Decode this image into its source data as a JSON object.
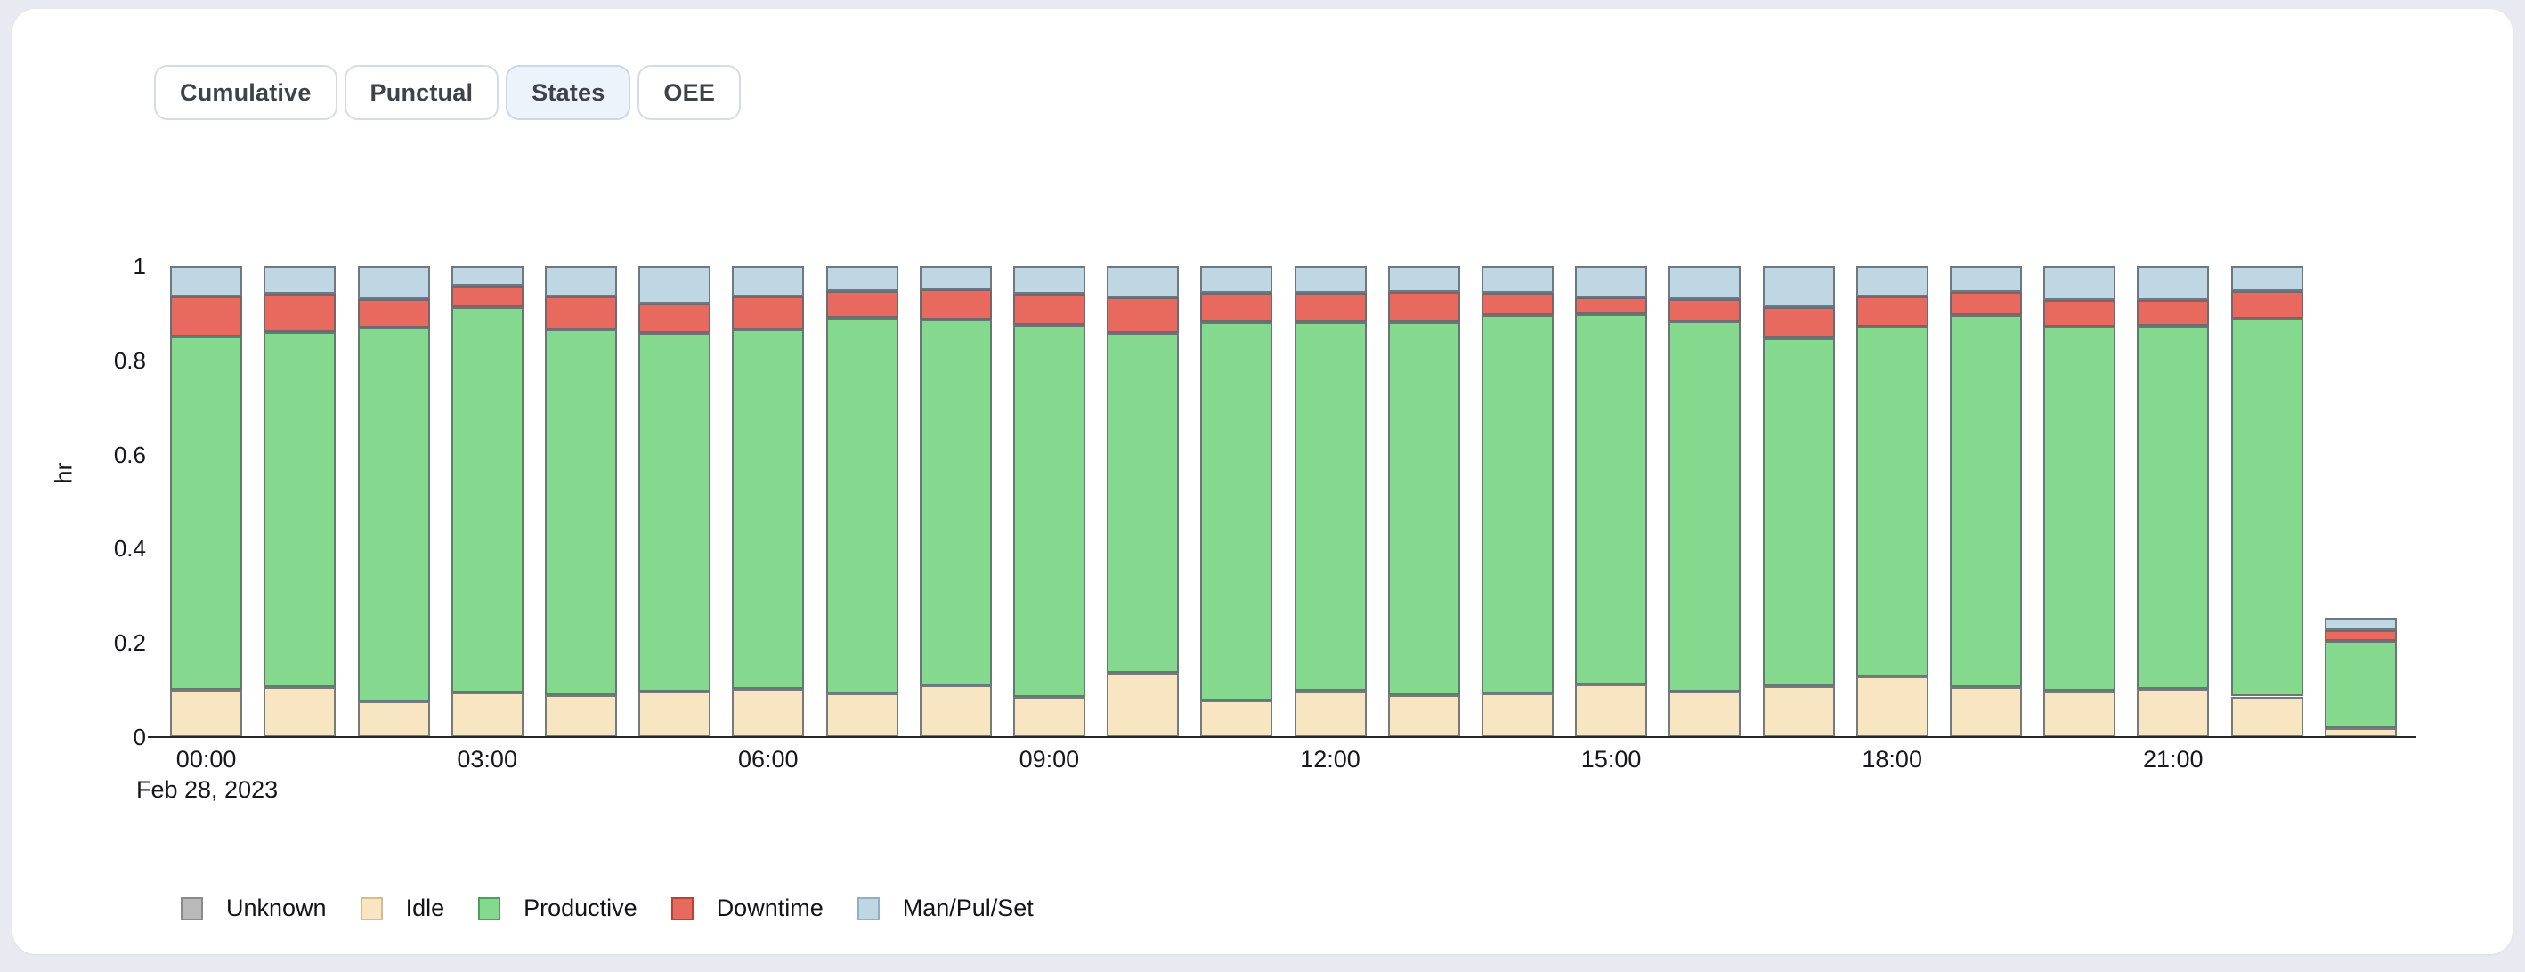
{
  "page": {
    "background_color": "#e9eaf1",
    "card_color": "#ffffff",
    "active_tab_color": "#edf3fb"
  },
  "tabs": [
    {
      "label": "Cumulative",
      "active": false
    },
    {
      "label": "Punctual",
      "active": false
    },
    {
      "label": "States",
      "active": true
    },
    {
      "label": "OEE",
      "active": false
    }
  ],
  "chart_data": {
    "type": "bar",
    "stacked": true,
    "title": "",
    "xlabel": "",
    "ylabel": "hr",
    "date_label": "Feb 28, 2023",
    "ylim": [
      0,
      1
    ],
    "yticks": [
      0,
      0.2,
      0.4,
      0.6,
      0.8,
      1
    ],
    "ytick_labels": [
      "0",
      "0.2",
      "0.4",
      "0.6",
      "0.8",
      "1"
    ],
    "grid": false,
    "legend_position": "bottom-left",
    "xtick_every": 3,
    "categories": [
      "00:00",
      "01:00",
      "02:00",
      "03:00",
      "04:00",
      "05:00",
      "06:00",
      "07:00",
      "08:00",
      "09:00",
      "10:00",
      "11:00",
      "12:00",
      "13:00",
      "14:00",
      "15:00",
      "16:00",
      "17:00",
      "18:00",
      "19:00",
      "20:00",
      "21:00",
      "22:00",
      "23:00"
    ],
    "series": [
      {
        "name": "Unknown",
        "fill": "#b9b9b9",
        "border": "#8a8a8a",
        "values": [
          0,
          0,
          0,
          0,
          0,
          0,
          0,
          0,
          0,
          0,
          0,
          0,
          0,
          0,
          0,
          0,
          0,
          0,
          0,
          0,
          0,
          0,
          0,
          0
        ]
      },
      {
        "name": "Idle",
        "fill": "#f8e5c1",
        "border": "#d6bd8e",
        "values": [
          0.1,
          0.105,
          0.075,
          0.094,
          0.089,
          0.096,
          0.103,
          0.092,
          0.11,
          0.086,
          0.136,
          0.078,
          0.098,
          0.088,
          0.092,
          0.111,
          0.097,
          0.108,
          0.129,
          0.105,
          0.098,
          0.102,
          0.086,
          0.019
        ]
      },
      {
        "name": "Productive",
        "fill": "#85d98e",
        "border": "#4f9f5c",
        "values": [
          0.751,
          0.756,
          0.795,
          0.819,
          0.777,
          0.762,
          0.762,
          0.799,
          0.777,
          0.789,
          0.722,
          0.802,
          0.782,
          0.793,
          0.804,
          0.787,
          0.786,
          0.738,
          0.743,
          0.791,
          0.773,
          0.771,
          0.802,
          0.185
        ]
      },
      {
        "name": "Downtime",
        "fill": "#e8695e",
        "border": "#b54438",
        "values": [
          0.084,
          0.08,
          0.061,
          0.045,
          0.07,
          0.063,
          0.071,
          0.057,
          0.064,
          0.066,
          0.075,
          0.064,
          0.063,
          0.065,
          0.048,
          0.035,
          0.048,
          0.067,
          0.064,
          0.05,
          0.058,
          0.056,
          0.06,
          0.022
        ]
      },
      {
        "name": "Man/Pul/Set",
        "fill": "#bed7e2",
        "border": "#8fb0c0",
        "values": [
          0.065,
          0.059,
          0.069,
          0.042,
          0.064,
          0.079,
          0.064,
          0.052,
          0.049,
          0.059,
          0.067,
          0.056,
          0.057,
          0.054,
          0.056,
          0.067,
          0.069,
          0.087,
          0.064,
          0.054,
          0.071,
          0.071,
          0.052,
          0.027
        ]
      }
    ]
  }
}
